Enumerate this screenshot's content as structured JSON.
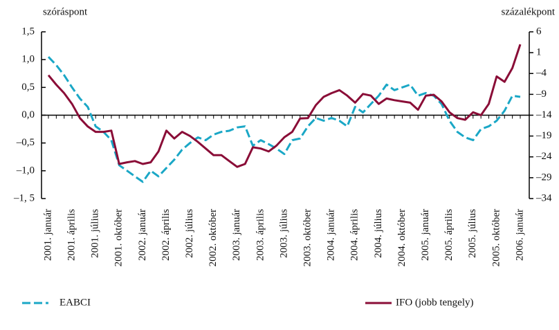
{
  "chart_data": {
    "type": "line",
    "y_label": "szóráspont",
    "y2_label": "százalékpont",
    "categories": [
      "2001. január",
      null,
      null,
      "2001. április",
      null,
      null,
      "2001. július",
      null,
      null,
      "2001. október",
      null,
      null,
      "2002. január",
      null,
      null,
      "2002. április",
      null,
      null,
      "2002. július",
      null,
      null,
      "2002. október",
      null,
      null,
      "2003. január",
      null,
      null,
      "2003. április",
      null,
      null,
      "2003. július",
      null,
      null,
      "2003. október",
      null,
      null,
      "2004. január",
      null,
      null,
      "2004. április",
      null,
      null,
      "2004. július",
      null,
      null,
      "2004. október",
      null,
      null,
      "2005. január",
      null,
      null,
      "2005. április",
      null,
      null,
      "2005. július",
      null,
      null,
      "2005. október",
      null,
      null,
      "2006. január"
    ],
    "series": [
      {
        "name": "EABCI",
        "color": "#1aa7c6",
        "dashed": true,
        "axis": "y",
        "values": [
          1.05,
          0.9,
          0.72,
          0.5,
          0.3,
          0.15,
          -0.2,
          -0.3,
          -0.45,
          -0.9,
          -1.0,
          -1.1,
          -1.2,
          -1.0,
          -1.1,
          -0.95,
          -0.8,
          -0.62,
          -0.5,
          -0.4,
          -0.45,
          -0.35,
          -0.3,
          -0.28,
          -0.22,
          -0.2,
          -0.55,
          -0.45,
          -0.52,
          -0.6,
          -0.7,
          -0.45,
          -0.42,
          -0.2,
          -0.05,
          -0.1,
          -0.05,
          -0.1,
          -0.2,
          0.15,
          0.05,
          0.2,
          0.35,
          0.55,
          0.45,
          0.5,
          0.55,
          0.35,
          0.4,
          0.35,
          0.2,
          -0.1,
          -0.3,
          -0.4,
          -0.45,
          -0.25,
          -0.2,
          -0.1,
          0.08,
          0.35,
          0.33
        ]
      },
      {
        "name": "IFO (jobb tengely)",
        "color": "#8a0d37",
        "dashed": false,
        "axis": "y2",
        "values": [
          -4.4,
          -6.7,
          -8.7,
          -11.3,
          -14.7,
          -16.7,
          -18,
          -18,
          -17.7,
          -25.7,
          -25.3,
          -25,
          -25.7,
          -25.3,
          -22.7,
          -17.7,
          -19.6,
          -18,
          -19,
          -20.4,
          -22,
          -23.6,
          -23.6,
          -25,
          -26.4,
          -25.7,
          -21.7,
          -22,
          -22.7,
          -21.3,
          -19.3,
          -18,
          -14.8,
          -14.7,
          -11.6,
          -9.6,
          -8.7,
          -8,
          -9.3,
          -11,
          -8.9,
          -9.3,
          -11.3,
          -10,
          -10.4,
          -10.7,
          -11,
          -12.7,
          -9.3,
          -9.1,
          -10.7,
          -13.3,
          -14.7,
          -15.1,
          -13.3,
          -14,
          -11.3,
          -4.7,
          -6,
          -2.7,
          3
        ]
      }
    ],
    "ylim": [
      -1.5,
      1.5
    ],
    "yticks": [
      {
        "value": 1.5,
        "label": "1,5"
      },
      {
        "value": 1.0,
        "label": "1,0"
      },
      {
        "value": 0.5,
        "label": "0,5"
      },
      {
        "value": 0,
        "label": "0,0"
      },
      {
        "value": -0.5,
        "label": "–0,5"
      },
      {
        "value": -1.0,
        "label": "–1,0"
      },
      {
        "value": -1.5,
        "label": "–1, 5"
      }
    ],
    "y2lim": [
      -34,
      6
    ],
    "y2ticks": [
      6,
      1,
      {
        "value": -4,
        "label": "–4"
      },
      {
        "value": -9,
        "label": "–9"
      },
      {
        "value": -14,
        "label": "–14"
      },
      {
        "value": -19,
        "label": "–19"
      },
      {
        "value": -24,
        "label": "–24"
      },
      {
        "value": -29,
        "label": "–29"
      },
      {
        "value": -34,
        "label": "–34"
      }
    ],
    "grid": false,
    "legend": "bottom"
  }
}
